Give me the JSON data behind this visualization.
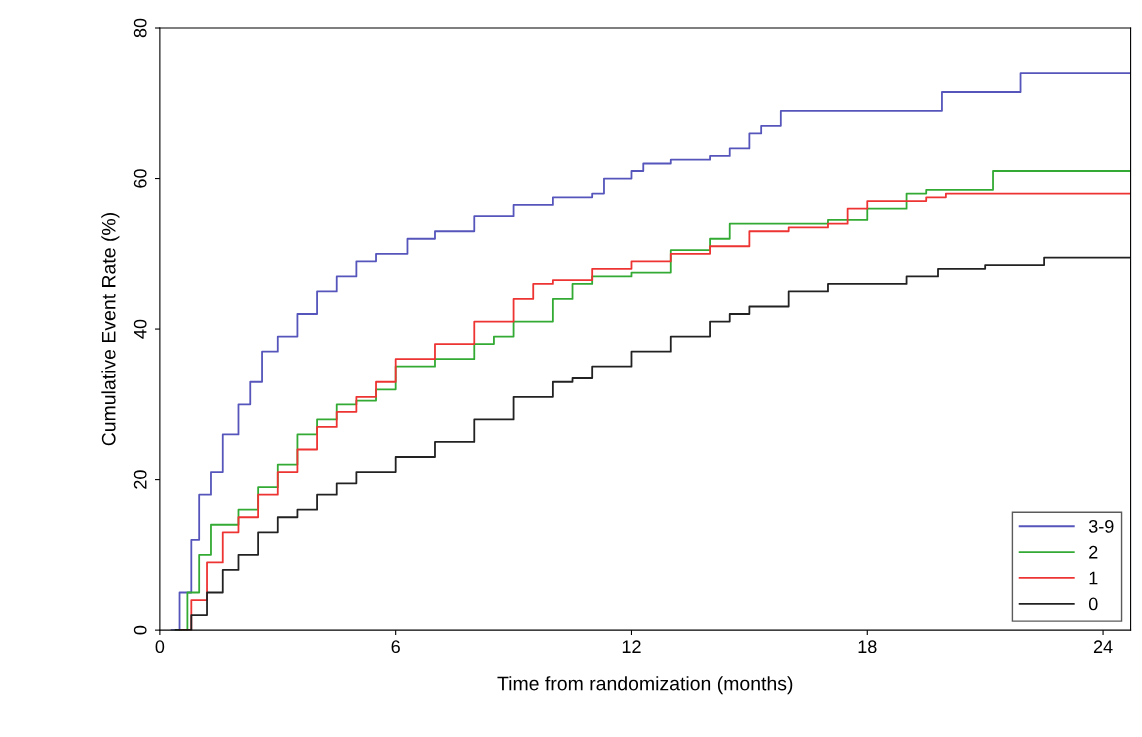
{
  "chart_data": {
    "type": "step",
    "xlabel": "Time from randomization (months)",
    "ylabel": "Cumulative Event Rate (%)",
    "xlim": [
      0,
      24.7
    ],
    "xticks": [
      0,
      6,
      12,
      18,
      24
    ],
    "ylim": [
      0,
      80
    ],
    "yticks": [
      0,
      20,
      40,
      60,
      80
    ],
    "grid": false,
    "legend": "bottom right",
    "line_style": "solid",
    "marker": "none",
    "series": [
      {
        "name": "3-9",
        "color": "#5555bb",
        "x": [
          0.3,
          0.5,
          0.8,
          1.0,
          1.3,
          1.6,
          2.0,
          2.3,
          2.6,
          3.0,
          3.5,
          4.0,
          4.5,
          5.0,
          5.5,
          6.3,
          7,
          8,
          9,
          10,
          11,
          11.3,
          12,
          12.3,
          13,
          14,
          14.5,
          15,
          15.3,
          15.8,
          19.9,
          21.9,
          24.7
        ],
        "values": [
          0,
          5,
          12,
          18,
          21,
          26,
          30,
          33,
          37,
          39,
          42,
          45,
          47,
          49,
          50,
          52,
          53,
          55,
          56.5,
          57.5,
          58,
          60,
          61,
          62,
          62.5,
          63,
          64,
          66,
          67,
          69,
          71.5,
          74,
          74
        ]
      },
      {
        "name": "2",
        "color": "#33aa33",
        "x": [
          0.4,
          0.7,
          1.0,
          1.3,
          2,
          2.5,
          3,
          3.5,
          4,
          4.5,
          5,
          5.5,
          6,
          7,
          8,
          8.5,
          9,
          10,
          10.5,
          11,
          12,
          13,
          14,
          14.5,
          17,
          18,
          19,
          19.5,
          21.2,
          24.7
        ],
        "values": [
          0,
          5,
          10,
          14,
          16,
          19,
          22,
          26,
          28,
          30,
          30.5,
          32,
          35,
          36,
          38,
          39,
          41,
          44,
          46,
          47,
          47.5,
          50.5,
          52,
          54,
          54.5,
          56,
          58,
          58.5,
          61,
          61
        ]
      },
      {
        "name": "1",
        "color": "#ee3333",
        "x": [
          0.5,
          0.8,
          1.2,
          1.6,
          2,
          2.5,
          3,
          3.5,
          4,
          4.5,
          5,
          5.5,
          6,
          7,
          8,
          9,
          9.5,
          10,
          11,
          12,
          13,
          14,
          15,
          16,
          17,
          17.5,
          18,
          19.5,
          20,
          24.7
        ],
        "values": [
          0,
          4,
          9,
          13,
          15,
          18,
          21,
          24,
          27,
          29,
          31,
          33,
          36,
          38,
          41,
          44,
          46,
          46.5,
          48,
          49,
          50,
          51,
          53,
          53.5,
          54,
          56,
          57,
          57.5,
          58,
          58
        ]
      },
      {
        "name": "0",
        "color": "#222222",
        "x": [
          0.4,
          0.8,
          1.2,
          1.6,
          2,
          2.5,
          3,
          3.5,
          4,
          4.5,
          5,
          6,
          7,
          8,
          9,
          10,
          10.5,
          11,
          12,
          13,
          14,
          14.5,
          15,
          16,
          17,
          19,
          19.8,
          21,
          22.5,
          24.7
        ],
        "values": [
          0,
          2,
          5,
          8,
          10,
          13,
          15,
          16,
          18,
          19.5,
          21,
          23,
          25,
          28,
          31,
          33,
          33.5,
          35,
          37,
          39,
          41,
          42,
          43,
          45,
          46,
          47,
          48,
          48.5,
          49.5,
          49.5
        ]
      }
    ]
  }
}
